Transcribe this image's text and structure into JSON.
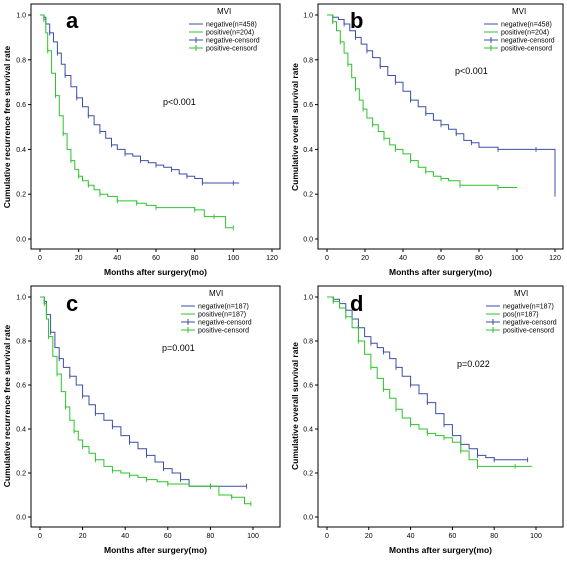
{
  "chart_data": [
    {
      "type": "line",
      "panel_letter": "a",
      "xlabel": "Months after surgery(mo)",
      "ylabel": "Cumulative recurrence free survival rate",
      "xlim": [
        0,
        120
      ],
      "ylim": [
        0,
        1.0
      ],
      "xticks": [
        "0",
        "20",
        "40",
        "60",
        "80",
        "100",
        "120"
      ],
      "yticks": [
        "0.0",
        "0.2",
        "0.4",
        "0.6",
        "0.8",
        "1.0"
      ],
      "annotation": "p<0.001",
      "legend": {
        "title": "MVI",
        "entries": [
          "negative(n=458)",
          "positive(n=204)",
          "negative-censord",
          "positive-censord"
        ],
        "placement": "top-right"
      },
      "grid": false,
      "series": [
        {
          "name": "negative(n=458)",
          "color": "#3b4fa8",
          "x": [
            0,
            2,
            3,
            5,
            7,
            9,
            11,
            13,
            16,
            19,
            22,
            25,
            28,
            31,
            34,
            37,
            40,
            44,
            48,
            52,
            56,
            60,
            64,
            68,
            72,
            76,
            80,
            84,
            90,
            100,
            103
          ],
          "y": [
            1.0,
            0.99,
            0.96,
            0.92,
            0.88,
            0.83,
            0.78,
            0.73,
            0.68,
            0.63,
            0.59,
            0.55,
            0.51,
            0.48,
            0.45,
            0.42,
            0.4,
            0.38,
            0.37,
            0.35,
            0.34,
            0.33,
            0.32,
            0.31,
            0.29,
            0.28,
            0.27,
            0.25,
            0.25,
            0.25,
            0.25
          ]
        },
        {
          "name": "positive(n=204)",
          "color": "#2ec32e",
          "x": [
            0,
            2,
            3,
            4,
            6,
            8,
            10,
            12,
            14,
            16,
            18,
            20,
            22,
            25,
            28,
            31,
            35,
            40,
            45,
            50,
            55,
            60,
            70,
            80,
            85,
            90,
            96,
            100
          ],
          "y": [
            1.0,
            0.98,
            0.92,
            0.84,
            0.74,
            0.64,
            0.55,
            0.47,
            0.4,
            0.35,
            0.31,
            0.28,
            0.26,
            0.24,
            0.22,
            0.2,
            0.19,
            0.17,
            0.17,
            0.16,
            0.15,
            0.14,
            0.14,
            0.13,
            0.1,
            0.1,
            0.05,
            0.05
          ]
        }
      ]
    },
    {
      "type": "line",
      "panel_letter": "b",
      "xlabel": "Months after surgery(mo)",
      "ylabel": "Cumulative overall survival rate",
      "xlim": [
        0,
        120
      ],
      "ylim": [
        0,
        1.0
      ],
      "xticks": [
        "0",
        "20",
        "40",
        "60",
        "80",
        "100",
        "120"
      ],
      "yticks": [
        "0.0",
        "0.2",
        "0.4",
        "0.6",
        "0.8",
        "1.0"
      ],
      "annotation": "p<0.001",
      "legend": {
        "title": "MVI",
        "entries": [
          "negative(n=458)",
          "positive(n=204)",
          "negative-censord",
          "positive-censord"
        ],
        "placement": "top-right"
      },
      "grid": false,
      "series": [
        {
          "name": "negative(n=458)",
          "color": "#3b4fa8",
          "x": [
            0,
            3,
            6,
            9,
            12,
            15,
            18,
            21,
            24,
            28,
            32,
            36,
            40,
            44,
            48,
            52,
            56,
            60,
            64,
            68,
            72,
            76,
            80,
            90,
            100,
            110,
            117,
            120
          ],
          "y": [
            1.0,
            0.99,
            0.98,
            0.96,
            0.93,
            0.9,
            0.87,
            0.84,
            0.81,
            0.77,
            0.73,
            0.7,
            0.66,
            0.62,
            0.59,
            0.56,
            0.53,
            0.51,
            0.49,
            0.47,
            0.44,
            0.43,
            0.41,
            0.4,
            0.4,
            0.4,
            0.4,
            0.2
          ]
        },
        {
          "name": "positive(n=204)",
          "color": "#2ec32e",
          "x": [
            0,
            3,
            5,
            7,
            9,
            11,
            13,
            15,
            17,
            19,
            21,
            24,
            27,
            30,
            33,
            36,
            40,
            44,
            48,
            52,
            56,
            60,
            64,
            70,
            80,
            90,
            100
          ],
          "y": [
            1.0,
            0.97,
            0.93,
            0.88,
            0.83,
            0.78,
            0.72,
            0.67,
            0.62,
            0.58,
            0.54,
            0.51,
            0.48,
            0.45,
            0.42,
            0.4,
            0.38,
            0.35,
            0.32,
            0.3,
            0.28,
            0.27,
            0.26,
            0.24,
            0.24,
            0.23,
            0.23
          ]
        }
      ]
    },
    {
      "type": "line",
      "panel_letter": "c",
      "xlabel": "Months after surgery(mo)",
      "ylabel": "Cumulative recurrence free survival rate",
      "xlim": [
        0,
        100
      ],
      "ylim": [
        0,
        1.0
      ],
      "xticks": [
        "0",
        "20",
        "40",
        "60",
        "80",
        "100"
      ],
      "yticks": [
        "0.0",
        "0.2",
        "0.4",
        "0.6",
        "0.8",
        "1.0"
      ],
      "annotation": "p=0.001",
      "legend": {
        "title": "MVI",
        "entries": [
          "negative(n=187)",
          "positive(n=187)",
          "negative-censord",
          "positive-censord"
        ],
        "placement": "top-right"
      },
      "grid": false,
      "series": [
        {
          "name": "negative(n=187)",
          "color": "#3b4fa8",
          "x": [
            0,
            2,
            3,
            5,
            7,
            9,
            11,
            14,
            17,
            20,
            23,
            26,
            30,
            34,
            38,
            42,
            46,
            50,
            54,
            58,
            62,
            66,
            70,
            80,
            90,
            97
          ],
          "y": [
            1.0,
            0.98,
            0.92,
            0.84,
            0.77,
            0.72,
            0.68,
            0.64,
            0.6,
            0.55,
            0.51,
            0.47,
            0.44,
            0.41,
            0.37,
            0.34,
            0.31,
            0.28,
            0.25,
            0.22,
            0.2,
            0.17,
            0.14,
            0.14,
            0.14,
            0.14
          ]
        },
        {
          "name": "positive(n=187)",
          "color": "#2ec32e",
          "x": [
            0,
            2,
            3,
            4,
            6,
            8,
            10,
            12,
            14,
            16,
            18,
            20,
            23,
            26,
            30,
            34,
            38,
            42,
            46,
            50,
            55,
            60,
            70,
            80,
            84,
            90,
            96,
            99
          ],
          "y": [
            1.0,
            0.97,
            0.9,
            0.82,
            0.73,
            0.65,
            0.57,
            0.5,
            0.44,
            0.39,
            0.35,
            0.32,
            0.29,
            0.26,
            0.23,
            0.21,
            0.2,
            0.19,
            0.18,
            0.17,
            0.16,
            0.15,
            0.14,
            0.14,
            0.1,
            0.09,
            0.06,
            0.06
          ]
        }
      ]
    },
    {
      "type": "line",
      "panel_letter": "d",
      "xlabel": "Months after surgery(mo)",
      "ylabel": "Cumulative overall survival rate",
      "xlim": [
        0,
        100
      ],
      "ylim": [
        0,
        1.0
      ],
      "xticks": [
        "0",
        "20",
        "40",
        "60",
        "80",
        "100"
      ],
      "yticks": [
        "0.0",
        "0.2",
        "0.4",
        "0.6",
        "0.8",
        "1.0"
      ],
      "annotation": "p=0.022",
      "legend": {
        "title": "MVI",
        "entries": [
          "negative(n=187)",
          "pos(n=187)",
          "negative-censord",
          "positive-censord"
        ],
        "placement": "top-right"
      },
      "grid": false,
      "series": [
        {
          "name": "negative(n=187)",
          "color": "#3b4fa8",
          "x": [
            0,
            3,
            6,
            9,
            12,
            15,
            18,
            21,
            24,
            27,
            30,
            33,
            36,
            40,
            44,
            48,
            52,
            56,
            60,
            64,
            68,
            72,
            76,
            80,
            90,
            96
          ],
          "y": [
            1.0,
            0.99,
            0.97,
            0.94,
            0.9,
            0.86,
            0.82,
            0.79,
            0.77,
            0.75,
            0.72,
            0.68,
            0.64,
            0.6,
            0.56,
            0.52,
            0.47,
            0.42,
            0.37,
            0.33,
            0.31,
            0.28,
            0.27,
            0.26,
            0.26,
            0.26
          ]
        },
        {
          "name": "pos(n=187)",
          "color": "#2ec32e",
          "x": [
            0,
            3,
            6,
            9,
            12,
            15,
            18,
            21,
            24,
            27,
            30,
            33,
            36,
            40,
            44,
            48,
            52,
            56,
            60,
            64,
            68,
            72,
            80,
            90,
            98
          ],
          "y": [
            1.0,
            0.98,
            0.95,
            0.91,
            0.86,
            0.8,
            0.74,
            0.68,
            0.63,
            0.58,
            0.54,
            0.49,
            0.45,
            0.42,
            0.4,
            0.38,
            0.37,
            0.36,
            0.34,
            0.3,
            0.26,
            0.23,
            0.23,
            0.23,
            0.23
          ]
        }
      ]
    }
  ]
}
